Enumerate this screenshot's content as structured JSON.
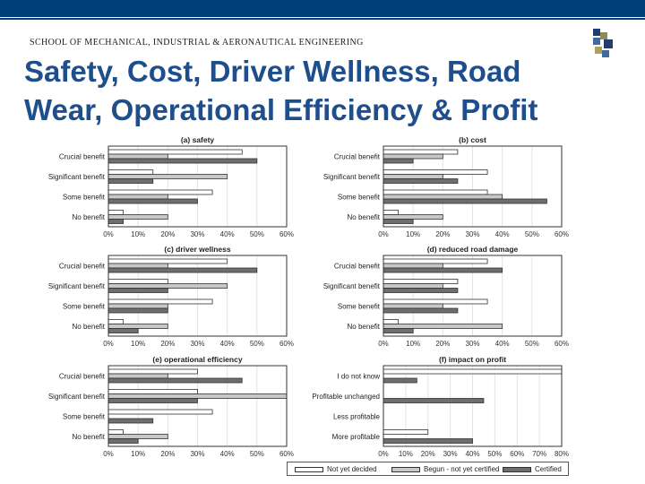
{
  "header": {
    "school": "SCHOOL OF MECHANICAL, INDUSTRIAL & AERONAUTICAL ENGINEERING",
    "title": "Safety, Cost, Driver Wellness, Road Wear, Operational Efficiency & Profit"
  },
  "colors": {
    "banner": "#003e79",
    "title": "#1f4e8c",
    "not_yet_decided": "#ffffff",
    "begun_not_certified": "#c8c8c8",
    "certified": "#6e6e6e"
  },
  "legend": [
    "Not yet decided",
    "Begun - not yet certified",
    "Certified"
  ],
  "chart_data": [
    {
      "type": "bar",
      "orientation": "horizontal",
      "title": "(a) safety",
      "categories": [
        "Crucial benefit",
        "Significant benefit",
        "Some benefit",
        "No benefit"
      ],
      "xticks": [
        "0%",
        "10%",
        "20%",
        "30%",
        "40%",
        "50%",
        "60%"
      ],
      "xlim": [
        0,
        60
      ],
      "series": [
        {
          "name": "Not yet decided",
          "values": [
            45,
            15,
            35,
            5
          ]
        },
        {
          "name": "Begun - not yet certified",
          "values": [
            20,
            40,
            20,
            20
          ]
        },
        {
          "name": "Certified",
          "values": [
            50,
            15,
            30,
            5
          ]
        }
      ]
    },
    {
      "type": "bar",
      "orientation": "horizontal",
      "title": "(b) cost",
      "categories": [
        "Crucial benefit",
        "Significant benefit",
        "Some benefit",
        "No benefit"
      ],
      "xticks": [
        "0%",
        "10%",
        "20%",
        "30%",
        "40%",
        "50%",
        "60%"
      ],
      "xlim": [
        0,
        60
      ],
      "series": [
        {
          "name": "Not yet decided",
          "values": [
            25,
            35,
            35,
            5
          ]
        },
        {
          "name": "Begun - not yet certified",
          "values": [
            20,
            20,
            40,
            20
          ]
        },
        {
          "name": "Certified",
          "values": [
            10,
            25,
            55,
            10
          ]
        }
      ]
    },
    {
      "type": "bar",
      "orientation": "horizontal",
      "title": "(c) driver wellness",
      "categories": [
        "Crucial benefit",
        "Significant benefit",
        "Some benefit",
        "No benefit"
      ],
      "xticks": [
        "0%",
        "10%",
        "20%",
        "30%",
        "40%",
        "50%",
        "60%"
      ],
      "xlim": [
        0,
        60
      ],
      "series": [
        {
          "name": "Not yet decided",
          "values": [
            40,
            20,
            35,
            5
          ]
        },
        {
          "name": "Begun - not yet certified",
          "values": [
            20,
            40,
            20,
            20
          ]
        },
        {
          "name": "Certified",
          "values": [
            50,
            20,
            20,
            10
          ]
        }
      ]
    },
    {
      "type": "bar",
      "orientation": "horizontal",
      "title": "(d) reduced road damage",
      "categories": [
        "Crucial benefit",
        "Significant benefit",
        "Some benefit",
        "No benefit"
      ],
      "xticks": [
        "0%",
        "10%",
        "20%",
        "30%",
        "40%",
        "50%",
        "60%"
      ],
      "xlim": [
        0,
        60
      ],
      "series": [
        {
          "name": "Not yet decided",
          "values": [
            35,
            25,
            35,
            5
          ]
        },
        {
          "name": "Begun - not yet certified",
          "values": [
            20,
            20,
            20,
            40
          ]
        },
        {
          "name": "Certified",
          "values": [
            40,
            25,
            25,
            10
          ]
        }
      ]
    },
    {
      "type": "bar",
      "orientation": "horizontal",
      "title": "(e) operational efficiency",
      "categories": [
        "Crucial benefit",
        "Significant benefit",
        "Some benefit",
        "No benefit"
      ],
      "xticks": [
        "0%",
        "10%",
        "20%",
        "30%",
        "40%",
        "50%",
        "60%"
      ],
      "xlim": [
        0,
        60
      ],
      "series": [
        {
          "name": "Not yet decided",
          "values": [
            30,
            30,
            35,
            5
          ]
        },
        {
          "name": "Begun - not yet certified",
          "values": [
            20,
            60,
            0,
            20
          ]
        },
        {
          "name": "Certified",
          "values": [
            45,
            30,
            15,
            10
          ]
        }
      ]
    },
    {
      "type": "bar",
      "orientation": "horizontal",
      "title": "(f) impact on profit",
      "categories": [
        "I do not know",
        "Profitable unchanged",
        "Less profitable",
        "More profitable"
      ],
      "xticks": [
        "0%",
        "10%",
        "20%",
        "30%",
        "40%",
        "50%",
        "60%",
        "70%",
        "80%"
      ],
      "xlim": [
        0,
        80
      ],
      "series": [
        {
          "name": "Not yet decided",
          "values": [
            80,
            0,
            0,
            20
          ]
        },
        {
          "name": "Begun - not yet certified",
          "values": [
            0,
            0,
            0,
            0
          ]
        },
        {
          "name": "Certified",
          "values": [
            15,
            45,
            0,
            40
          ]
        }
      ]
    }
  ]
}
